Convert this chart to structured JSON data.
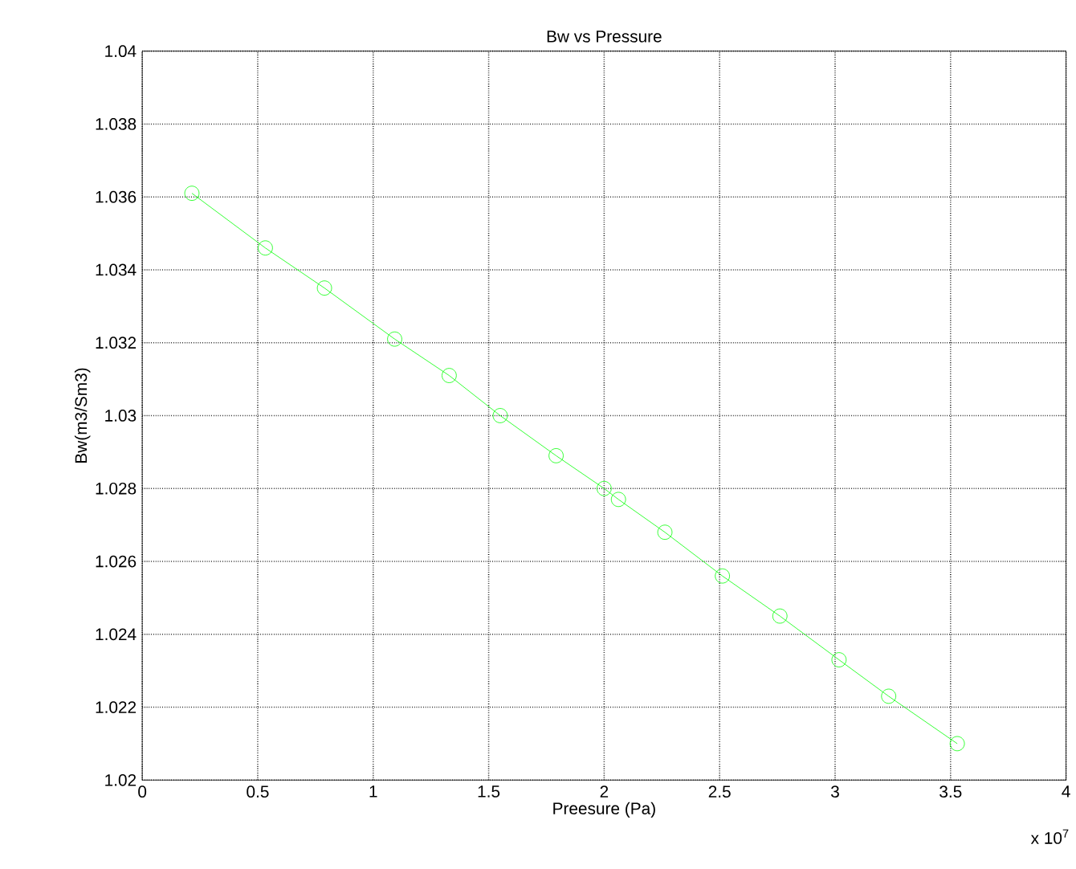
{
  "chart_data": {
    "type": "line",
    "title": "Bw vs Pressure",
    "xlabel": "Preesure (Pa)",
    "ylabel": "Bw(m3/Sm3)",
    "annotations": [
      "x 10$^{7}$"
    ],
    "x": [
      0.215,
      0.533,
      0.789,
      1.093,
      1.329,
      1.55,
      1.792,
      2.0,
      2.062,
      2.263,
      2.512,
      2.761,
      3.017,
      3.232,
      3.529
    ],
    "series": [
      {
        "color": "#00ff00",
        "values": [
          1.0361,
          1.0346,
          1.0335,
          1.0321,
          1.0311,
          1.03,
          1.0289,
          1.028,
          1.0277,
          1.0268,
          1.0256,
          1.0245,
          1.0233,
          1.0223,
          1.021
        ]
      }
    ],
    "xlim": [
      0,
      4
    ],
    "ylim": [
      1.02,
      1.04
    ],
    "xticks": [
      0,
      0.5,
      1,
      1.5,
      2,
      2.5,
      3,
      3.5,
      4
    ],
    "yticks": [
      1.02,
      1.022,
      1.024,
      1.026,
      1.028,
      1.03,
      1.032,
      1.034,
      1.036,
      1.038,
      1.04
    ],
    "grid": true,
    "marker": "circle",
    "line_style": "solid"
  }
}
